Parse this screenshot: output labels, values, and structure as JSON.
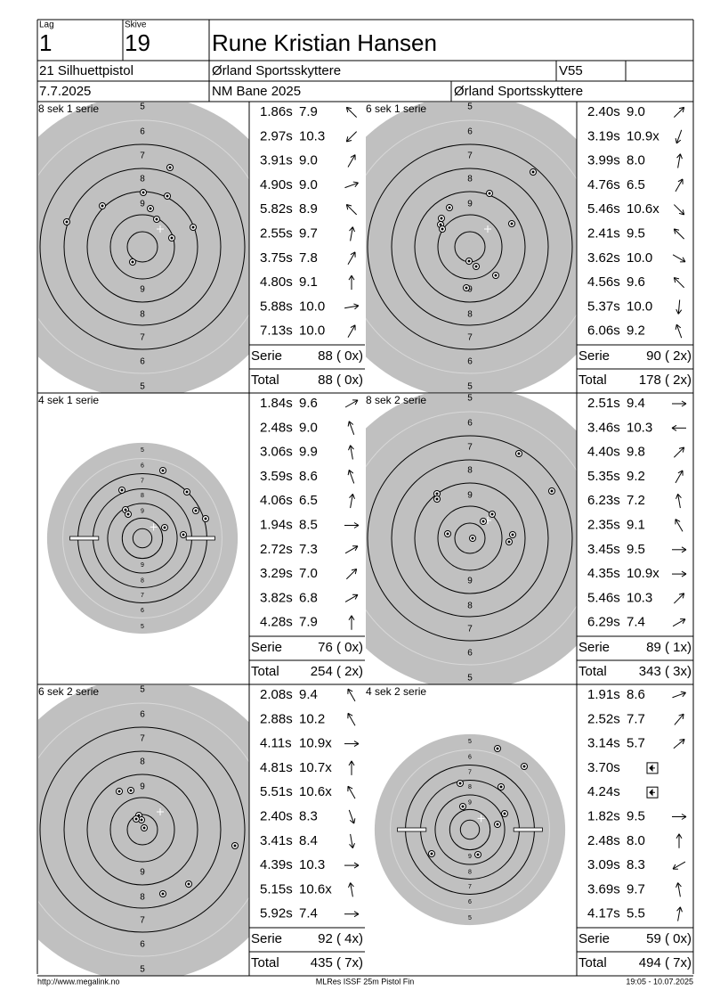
{
  "header": {
    "lag_label": "Lag",
    "lag": "1",
    "skive_label": "Skive",
    "skive": "19",
    "name": "Rune Kristian Hansen",
    "class": "21 Silhuettpistol",
    "club": "Ørland Sportsskyttere",
    "age_class": "V55",
    "date": "7.7.2025",
    "event": "NM Bane 2025",
    "club2": "Ørland Sportsskyttere"
  },
  "ring_labels": [
    "5",
    "6",
    "7",
    "8",
    "9"
  ],
  "panels": [
    {
      "title": "8 sek 1 serie",
      "shots": [
        {
          "time": "1.86s",
          "score": "7.9"
        },
        {
          "time": "2.97s",
          "score": "10.3"
        },
        {
          "time": "3.91s",
          "score": "9.0"
        },
        {
          "time": "4.90s",
          "score": "9.0"
        },
        {
          "time": "5.82s",
          "score": "8.9"
        },
        {
          "time": "2.55s",
          "score": "9.7"
        },
        {
          "time": "3.75s",
          "score": "7.8"
        },
        {
          "time": "4.80s",
          "score": "9.1"
        },
        {
          "time": "5.88s",
          "score": "10.0"
        },
        {
          "time": "7.13s",
          "score": "10.0"
        }
      ],
      "serie_label": "Serie",
      "serie": "88 ( 0x)",
      "total_label": "Total",
      "total": "88 ( 0x)"
    },
    {
      "title": "6 sek 1 serie",
      "shots": [
        {
          "time": "2.40s",
          "score": "9.0"
        },
        {
          "time": "3.19s",
          "score": "10.9x"
        },
        {
          "time": "3.99s",
          "score": "8.0"
        },
        {
          "time": "4.76s",
          "score": "6.5"
        },
        {
          "time": "5.46s",
          "score": "10.6x"
        },
        {
          "time": "2.41s",
          "score": "9.5"
        },
        {
          "time": "3.62s",
          "score": "10.0"
        },
        {
          "time": "4.56s",
          "score": "9.6"
        },
        {
          "time": "5.37s",
          "score": "10.0"
        },
        {
          "time": "6.06s",
          "score": "9.2"
        }
      ],
      "serie_label": "Serie",
      "serie": "90 ( 2x)",
      "total_label": "Total",
      "total": "178 ( 2x)"
    },
    {
      "title": "4 sek 1 serie",
      "shots": [
        {
          "time": "1.84s",
          "score": "9.6"
        },
        {
          "time": "2.48s",
          "score": "9.0"
        },
        {
          "time": "3.06s",
          "score": "9.9"
        },
        {
          "time": "3.59s",
          "score": "8.6"
        },
        {
          "time": "4.06s",
          "score": "6.5"
        },
        {
          "time": "1.94s",
          "score": "8.5"
        },
        {
          "time": "2.72s",
          "score": "7.3"
        },
        {
          "time": "3.29s",
          "score": "7.0"
        },
        {
          "time": "3.82s",
          "score": "6.8"
        },
        {
          "time": "4.28s",
          "score": "7.9"
        }
      ],
      "serie_label": "Serie",
      "serie": "76 ( 0x)",
      "total_label": "Total",
      "total": "254 ( 2x)"
    },
    {
      "title": "8 sek 2 serie",
      "shots": [
        {
          "time": "2.51s",
          "score": "9.4"
        },
        {
          "time": "3.46s",
          "score": "10.3"
        },
        {
          "time": "4.40s",
          "score": "9.8"
        },
        {
          "time": "5.35s",
          "score": "9.2"
        },
        {
          "time": "6.23s",
          "score": "7.2"
        },
        {
          "time": "2.35s",
          "score": "9.1"
        },
        {
          "time": "3.45s",
          "score": "9.5"
        },
        {
          "time": "4.35s",
          "score": "10.9x"
        },
        {
          "time": "5.46s",
          "score": "10.3"
        },
        {
          "time": "6.29s",
          "score": "7.4"
        }
      ],
      "serie_label": "Serie",
      "serie": "89 ( 1x)",
      "total_label": "Total",
      "total": "343 ( 3x)"
    },
    {
      "title": "6 sek 2 serie",
      "shots": [
        {
          "time": "2.08s",
          "score": "9.4"
        },
        {
          "time": "2.88s",
          "score": "10.2"
        },
        {
          "time": "4.11s",
          "score": "10.9x"
        },
        {
          "time": "4.81s",
          "score": "10.7x"
        },
        {
          "time": "5.51s",
          "score": "10.6x"
        },
        {
          "time": "2.40s",
          "score": "8.3"
        },
        {
          "time": "3.41s",
          "score": "8.4"
        },
        {
          "time": "4.39s",
          "score": "10.3"
        },
        {
          "time": "5.15s",
          "score": "10.6x"
        },
        {
          "time": "5.92s",
          "score": "7.4"
        }
      ],
      "serie_label": "Serie",
      "serie": "92 ( 4x)",
      "total_label": "Total",
      "total": "435 ( 7x)"
    },
    {
      "title": "4 sek 2 serie",
      "shots": [
        {
          "time": "1.91s",
          "score": "8.6"
        },
        {
          "time": "2.52s",
          "score": "7.7"
        },
        {
          "time": "3.14s",
          "score": "5.7"
        },
        {
          "time": "3.70s",
          "score": null
        },
        {
          "time": "4.24s",
          "score": null
        },
        {
          "time": "1.82s",
          "score": "9.5"
        },
        {
          "time": "2.48s",
          "score": "8.0"
        },
        {
          "time": "3.09s",
          "score": "8.3"
        },
        {
          "time": "3.69s",
          "score": "9.7"
        },
        {
          "time": "4.17s",
          "score": "5.5"
        }
      ],
      "serie_label": "Serie",
      "serie": "59 ( 0x)",
      "total_label": "Total",
      "total": "494 ( 7x)"
    }
  ],
  "footer": {
    "url": "http://www.megalink.no",
    "program": "MLRes ISSF 25m Pistol Fin",
    "timestamp": "19:05 - 10.07.2025"
  }
}
